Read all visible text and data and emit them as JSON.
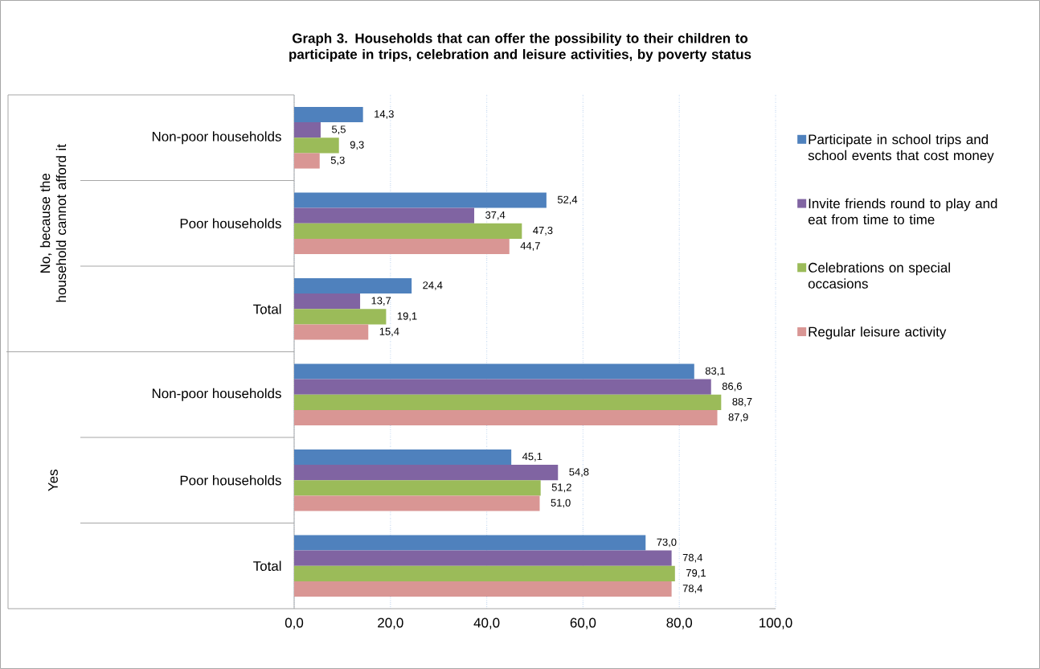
{
  "chart_data": {
    "type": "bar",
    "orientation": "horizontal",
    "title": "Graph 3. Households that can offer the possibility to their children to participate in trips, celebration and leisure activities, by poverty status",
    "categories": [
      "Non-poor households",
      "Poor households",
      "Total",
      "Non-poor households",
      "Poor households",
      "Total"
    ],
    "annotations": [
      "No, because the household cannot afford it",
      "Yes"
    ],
    "series": [
      {
        "name": "Participate in school trips and school events that cost money",
        "color": "#4f81bd",
        "values": [
          14.3,
          52.4,
          24.4,
          83.1,
          45.1,
          73.0
        ],
        "value_labels": [
          "14,3",
          "52,4",
          "24,4",
          "83,1",
          "45,1",
          "73,0"
        ]
      },
      {
        "name": "Invite friends round to play and eat from time to time",
        "color": "#8064a2",
        "values": [
          5.5,
          37.4,
          13.7,
          86.6,
          54.8,
          78.4
        ],
        "value_labels": [
          "5,5",
          "37,4",
          "13,7",
          "86,6",
          "54,8",
          "78,4"
        ]
      },
      {
        "name": "Celebrations on special occasions",
        "color": "#9bbb59",
        "values": [
          9.3,
          47.3,
          19.1,
          88.7,
          51.2,
          79.1
        ],
        "value_labels": [
          "9,3",
          "47,3",
          "19,1",
          "88,7",
          "51,2",
          "79,1"
        ]
      },
      {
        "name": "Regular leisure activity",
        "color": "#d99694",
        "values": [
          5.3,
          44.7,
          15.4,
          87.9,
          51.0,
          78.4
        ],
        "value_labels": [
          "5,3",
          "44,7",
          "15,4",
          "87,9",
          "51,0",
          "78,4"
        ]
      }
    ],
    "xlim": [
      0,
      100
    ],
    "xticks": [
      {
        "value": 0,
        "label": "0,0"
      },
      {
        "value": 20,
        "label": "20,0"
      },
      {
        "value": 40,
        "label": "40,0"
      },
      {
        "value": 60,
        "label": "60,0"
      },
      {
        "value": 80,
        "label": "80,0"
      },
      {
        "value": 100,
        "label": "100,0"
      }
    ],
    "grid": "x",
    "legend": "right"
  }
}
